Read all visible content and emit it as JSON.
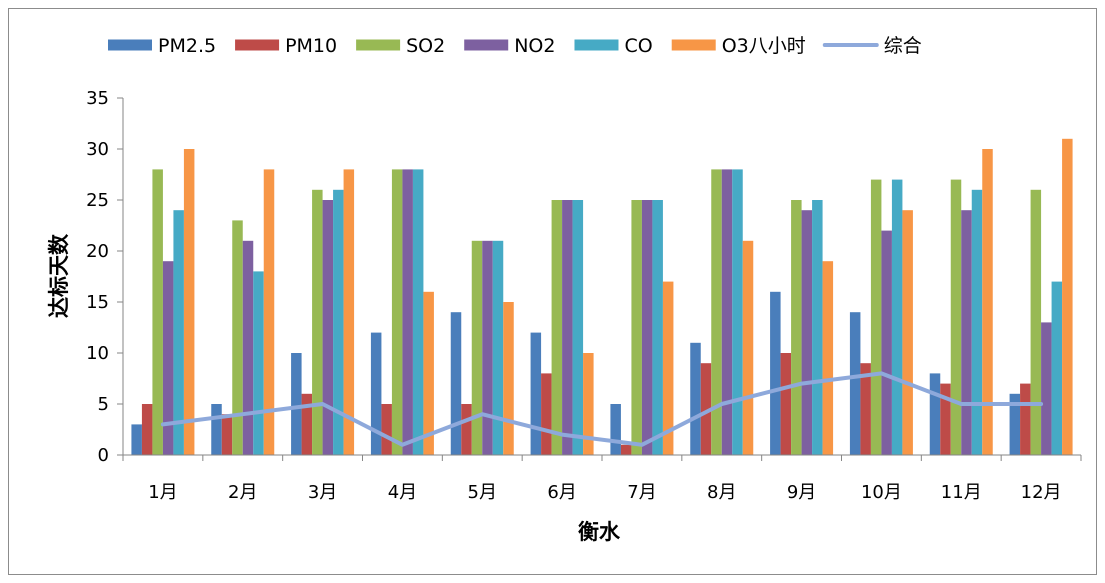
{
  "chart_data": {
    "type": "bar",
    "xlabel": "衡水",
    "ylabel": "达标天数",
    "ylim": [
      0,
      35
    ],
    "yticks": [
      0,
      5,
      10,
      15,
      20,
      25,
      30,
      35
    ],
    "legend_position": "top",
    "grid": false,
    "categories": [
      "1月",
      "2月",
      "3月",
      "4月",
      "5月",
      "6月",
      "7月",
      "8月",
      "9月",
      "10月",
      "11月",
      "12月"
    ],
    "series": [
      {
        "name": "PM2.5",
        "type": "bar",
        "color": "#4a7ebb",
        "values": [
          3,
          5,
          10,
          12,
          14,
          12,
          5,
          11,
          16,
          14,
          8,
          6
        ]
      },
      {
        "name": "PM10",
        "type": "bar",
        "color": "#be4b48",
        "values": [
          5,
          4,
          6,
          5,
          5,
          8,
          1,
          9,
          10,
          9,
          7,
          7
        ]
      },
      {
        "name": "SO2",
        "type": "bar",
        "color": "#98b954",
        "values": [
          28,
          23,
          26,
          28,
          21,
          25,
          25,
          28,
          25,
          27,
          27,
          26
        ]
      },
      {
        "name": "NO2",
        "type": "bar",
        "color": "#7d60a0",
        "values": [
          19,
          21,
          25,
          28,
          21,
          25,
          25,
          28,
          24,
          22,
          24,
          13
        ]
      },
      {
        "name": "CO",
        "type": "bar",
        "color": "#46aac5",
        "values": [
          24,
          18,
          26,
          28,
          21,
          25,
          25,
          28,
          25,
          27,
          26,
          17
        ]
      },
      {
        "name": "O3八小时",
        "type": "bar",
        "color": "#f79646",
        "values": [
          30,
          28,
          28,
          16,
          15,
          10,
          17,
          21,
          19,
          24,
          30,
          31
        ]
      },
      {
        "name": "综合",
        "type": "line",
        "color": "#8ea9db",
        "values": [
          3,
          4,
          5,
          1,
          4,
          2,
          1,
          5,
          7,
          8,
          5,
          5
        ]
      }
    ]
  }
}
